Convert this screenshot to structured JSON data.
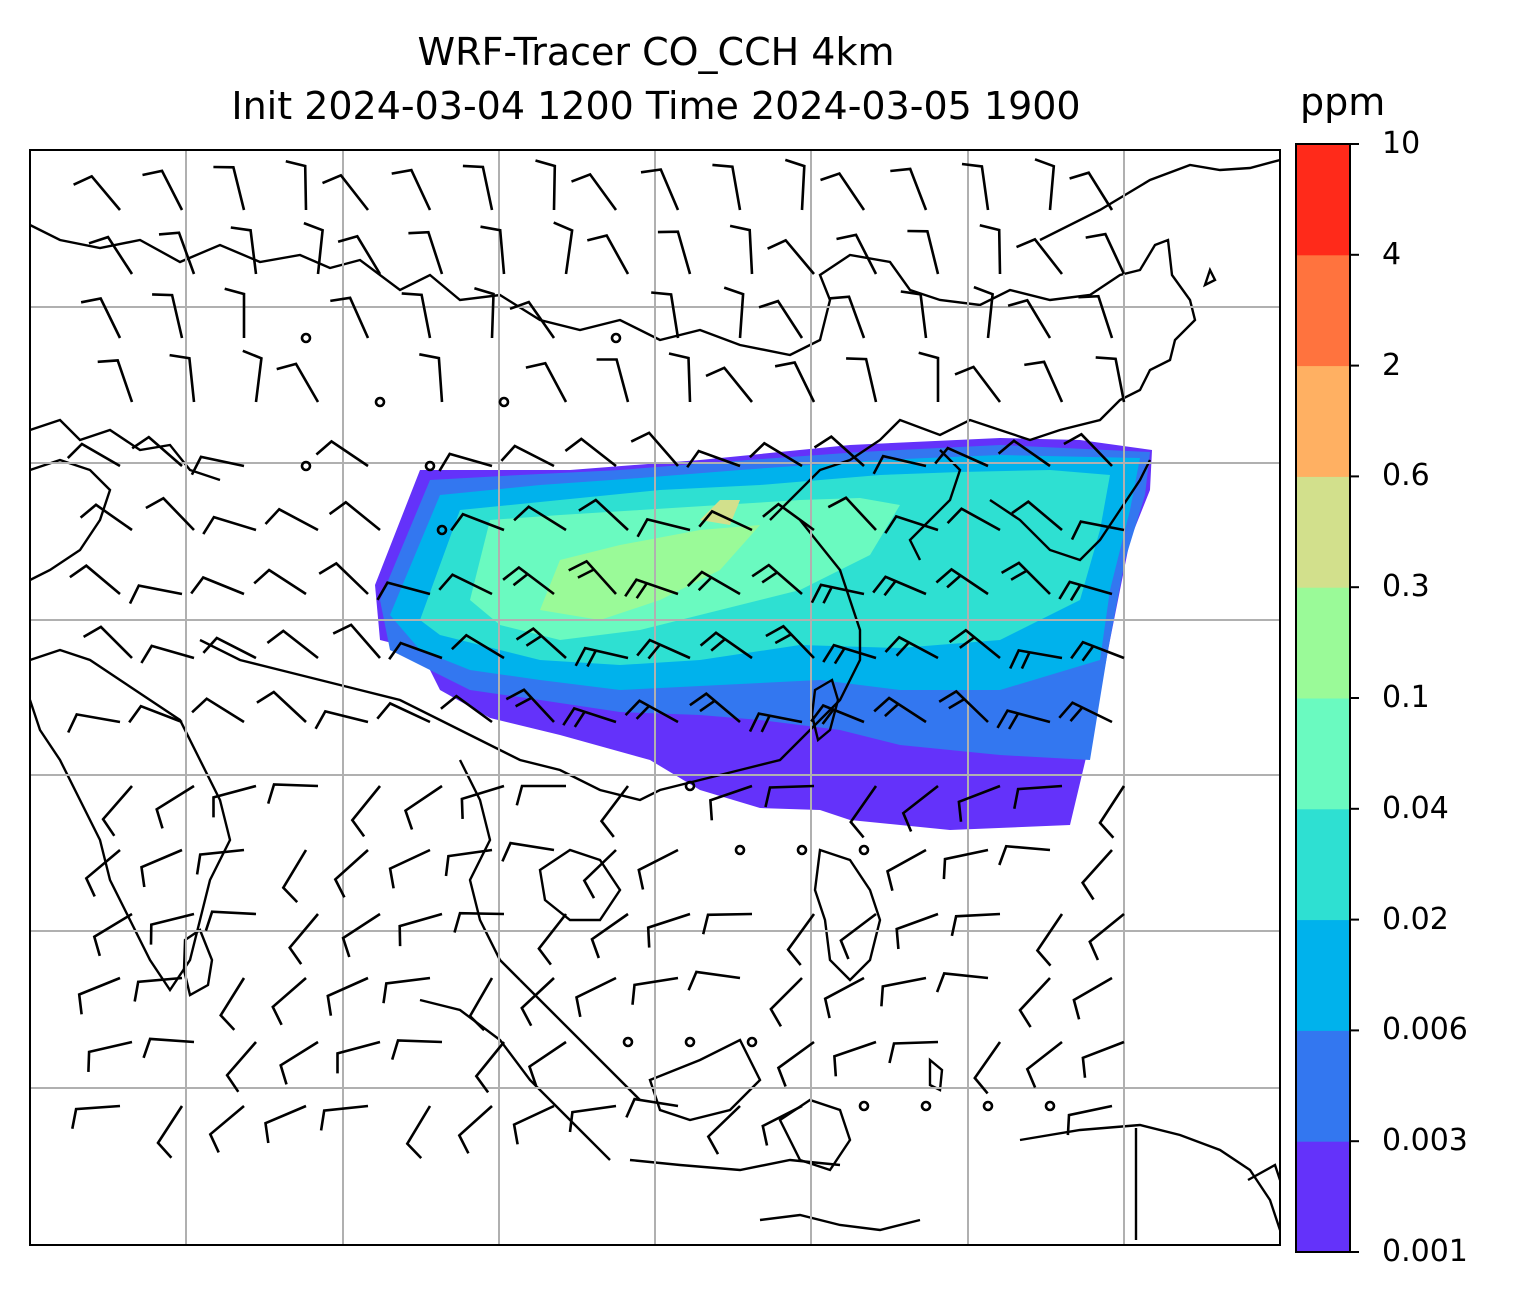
{
  "title": {
    "line1": "WRF-Tracer CO_CCH 4km",
    "line2": "Init 2024-03-04 1200 Time 2024-03-05 1900"
  },
  "colorbar": {
    "units": "ppm",
    "levels": [
      "0.001",
      "0.003",
      "0.006",
      "0.02",
      "0.04",
      "0.1",
      "0.3",
      "0.6",
      "2",
      "4",
      "10"
    ],
    "colors": [
      "#6432fa",
      "#3377f0",
      "#00b2ec",
      "#2ee0d2",
      "#6afac0",
      "#9afa98",
      "#d2e08c",
      "#ffb062",
      "#ff733e",
      "#ff2a1a"
    ]
  },
  "map": {
    "grid": "on",
    "coastlines": "on",
    "wind_barbs": "on",
    "field": "CO_CCH tracer concentration plume (shaded, ppm)"
  }
}
